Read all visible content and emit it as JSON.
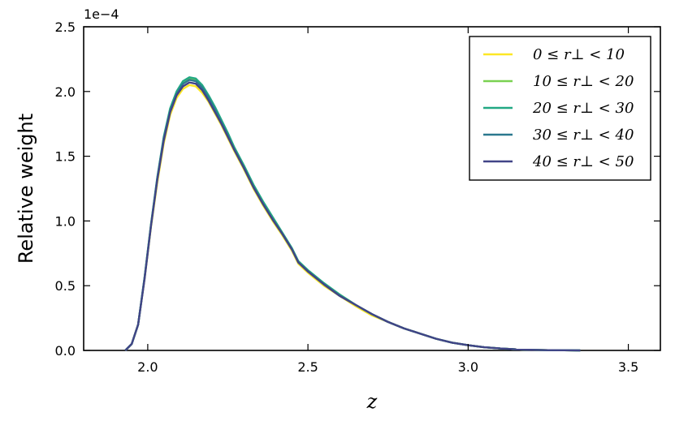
{
  "chart_data": {
    "type": "line",
    "title": "",
    "xlabel": "z",
    "ylabel": "Relative weight",
    "y_multiplier": "1e−4",
    "xlim": [
      1.8,
      3.6
    ],
    "ylim": [
      0,
      2.5
    ],
    "xticks": [
      2.0,
      2.5,
      3.0,
      3.5
    ],
    "xtick_labels": [
      "2.0",
      "2.5",
      "3.0",
      "3.5"
    ],
    "yticks": [
      0.0,
      0.5,
      1.0,
      1.5,
      2.0,
      2.5
    ],
    "ytick_labels": [
      "0.0",
      "0.5",
      "1.0",
      "1.5",
      "2.0",
      "2.5"
    ],
    "grid": false,
    "legend_position": "top-right",
    "x": [
      1.93,
      1.95,
      1.97,
      1.99,
      2.01,
      2.03,
      2.05,
      2.07,
      2.09,
      2.11,
      2.13,
      2.15,
      2.17,
      2.19,
      2.21,
      2.23,
      2.25,
      2.27,
      2.3,
      2.33,
      2.36,
      2.39,
      2.42,
      2.45,
      2.47,
      2.5,
      2.55,
      2.6,
      2.65,
      2.7,
      2.75,
      2.8,
      2.85,
      2.9,
      2.95,
      3.0,
      3.05,
      3.1,
      3.15,
      3.2,
      3.25,
      3.3,
      3.35
    ],
    "series": [
      {
        "name": "0 ≤ r⊥ < 10",
        "color": "#fde725",
        "values": [
          0.0,
          0.05,
          0.2,
          0.55,
          0.95,
          1.3,
          1.6,
          1.82,
          1.95,
          2.02,
          2.05,
          2.04,
          1.99,
          1.92,
          1.83,
          1.74,
          1.64,
          1.54,
          1.4,
          1.25,
          1.12,
          1.0,
          0.89,
          0.77,
          0.67,
          0.6,
          0.5,
          0.42,
          0.34,
          0.27,
          0.22,
          0.17,
          0.13,
          0.09,
          0.06,
          0.04,
          0.025,
          0.015,
          0.008,
          0.004,
          0.002,
          0.001,
          0.0
        ]
      },
      {
        "name": "10 ≤ r⊥ < 20",
        "color": "#7ad151",
        "values": [
          0.0,
          0.05,
          0.2,
          0.56,
          0.97,
          1.33,
          1.64,
          1.86,
          1.99,
          2.07,
          2.1,
          2.09,
          2.04,
          1.96,
          1.87,
          1.77,
          1.67,
          1.56,
          1.42,
          1.27,
          1.14,
          1.02,
          0.9,
          0.78,
          0.68,
          0.61,
          0.51,
          0.43,
          0.35,
          0.28,
          0.22,
          0.17,
          0.13,
          0.09,
          0.06,
          0.04,
          0.025,
          0.015,
          0.008,
          0.004,
          0.002,
          0.001,
          0.0
        ]
      },
      {
        "name": "20 ≤ r⊥ < 30",
        "color": "#22a884",
        "values": [
          0.0,
          0.05,
          0.2,
          0.56,
          0.97,
          1.34,
          1.65,
          1.87,
          2.0,
          2.08,
          2.11,
          2.1,
          2.05,
          1.97,
          1.88,
          1.78,
          1.68,
          1.57,
          1.43,
          1.28,
          1.15,
          1.03,
          0.91,
          0.79,
          0.69,
          0.62,
          0.52,
          0.43,
          0.35,
          0.28,
          0.22,
          0.17,
          0.13,
          0.09,
          0.06,
          0.04,
          0.025,
          0.015,
          0.008,
          0.004,
          0.002,
          0.001,
          0.0
        ]
      },
      {
        "name": "30 ≤ r⊥ < 40",
        "color": "#2a788e",
        "values": [
          0.0,
          0.05,
          0.2,
          0.56,
          0.96,
          1.33,
          1.64,
          1.85,
          1.98,
          2.06,
          2.09,
          2.08,
          2.03,
          1.95,
          1.86,
          1.76,
          1.66,
          1.55,
          1.41,
          1.26,
          1.13,
          1.01,
          0.9,
          0.78,
          0.68,
          0.61,
          0.51,
          0.42,
          0.35,
          0.28,
          0.22,
          0.17,
          0.13,
          0.09,
          0.06,
          0.04,
          0.025,
          0.015,
          0.008,
          0.004,
          0.002,
          0.001,
          0.0
        ]
      },
      {
        "name": "40 ≤ r⊥ < 50",
        "color": "#414487",
        "values": [
          0.0,
          0.05,
          0.2,
          0.55,
          0.96,
          1.32,
          1.62,
          1.84,
          1.97,
          2.04,
          2.07,
          2.06,
          2.01,
          1.93,
          1.84,
          1.75,
          1.65,
          1.55,
          1.41,
          1.26,
          1.13,
          1.01,
          0.9,
          0.78,
          0.68,
          0.61,
          0.51,
          0.42,
          0.35,
          0.28,
          0.22,
          0.17,
          0.13,
          0.09,
          0.06,
          0.04,
          0.025,
          0.015,
          0.008,
          0.004,
          0.002,
          0.001,
          0.0
        ]
      }
    ]
  }
}
